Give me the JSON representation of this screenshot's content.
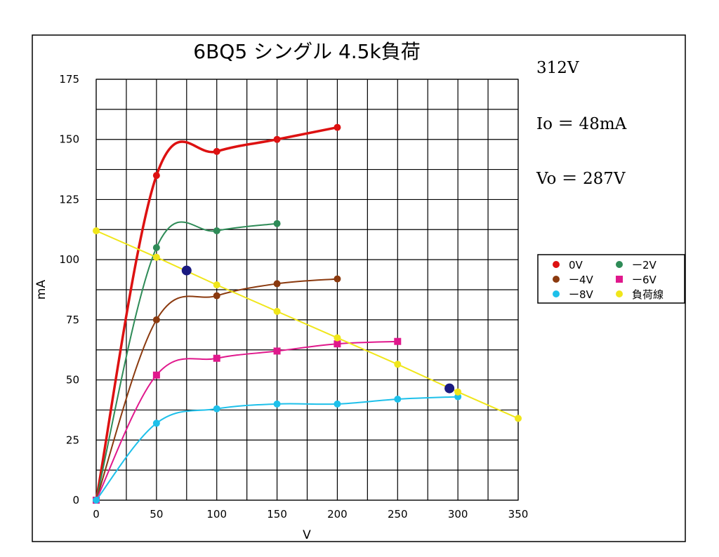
{
  "chart_data": {
    "type": "line",
    "title": "6BQ5  シングル 4.5k負荷",
    "xlabel": "V",
    "ylabel": "mA",
    "xlim": [
      0,
      350
    ],
    "ylim": [
      0,
      175
    ],
    "xticks": [
      0,
      50,
      100,
      150,
      200,
      250,
      300,
      350
    ],
    "yticks": [
      0,
      25,
      50,
      75,
      100,
      125,
      150,
      175
    ],
    "grid": true,
    "legend_position": "right",
    "series": [
      {
        "name": "0V",
        "color": "#dd1111",
        "marker": "circle",
        "points": [
          [
            0,
            0
          ],
          [
            50,
            135
          ],
          [
            100,
            145
          ],
          [
            150,
            150
          ],
          [
            200,
            155
          ]
        ]
      },
      {
        "name": "ー2V",
        "color": "#2e8b57",
        "marker": "circle",
        "points": [
          [
            0,
            0
          ],
          [
            50,
            105
          ],
          [
            100,
            112
          ],
          [
            150,
            115
          ]
        ]
      },
      {
        "name": "ー4V",
        "color": "#8b3a0f",
        "marker": "circle",
        "points": [
          [
            0,
            0
          ],
          [
            50,
            75
          ],
          [
            100,
            85
          ],
          [
            150,
            90
          ],
          [
            200,
            92
          ]
        ]
      },
      {
        "name": "ー6V",
        "color": "#e0188c",
        "marker": "square",
        "points": [
          [
            0,
            0
          ],
          [
            50,
            52
          ],
          [
            100,
            59
          ],
          [
            150,
            62
          ],
          [
            200,
            65
          ],
          [
            250,
            66
          ]
        ]
      },
      {
        "name": "ー8V",
        "color": "#1ec0ea",
        "marker": "circle",
        "points": [
          [
            0,
            0
          ],
          [
            50,
            32
          ],
          [
            100,
            38
          ],
          [
            150,
            40
          ],
          [
            200,
            40
          ],
          [
            250,
            42
          ],
          [
            300,
            43
          ]
        ]
      },
      {
        "name": "負荷線",
        "color": "#f0e61a",
        "marker": "circle",
        "points": [
          [
            0,
            112
          ],
          [
            50,
            101
          ],
          [
            100,
            89.5
          ],
          [
            150,
            78.5
          ],
          [
            200,
            67.5
          ],
          [
            250,
            56.5
          ],
          [
            300,
            45
          ],
          [
            350,
            34
          ]
        ]
      }
    ],
    "highlight_points": [
      [
        75,
        95.5
      ],
      [
        293,
        46.5
      ]
    ],
    "highlight_color": "#1a1a80",
    "annotations": [
      "312V",
      "Io ＝ 48mA",
      "Vo ＝ 287Ⅴ"
    ]
  }
}
